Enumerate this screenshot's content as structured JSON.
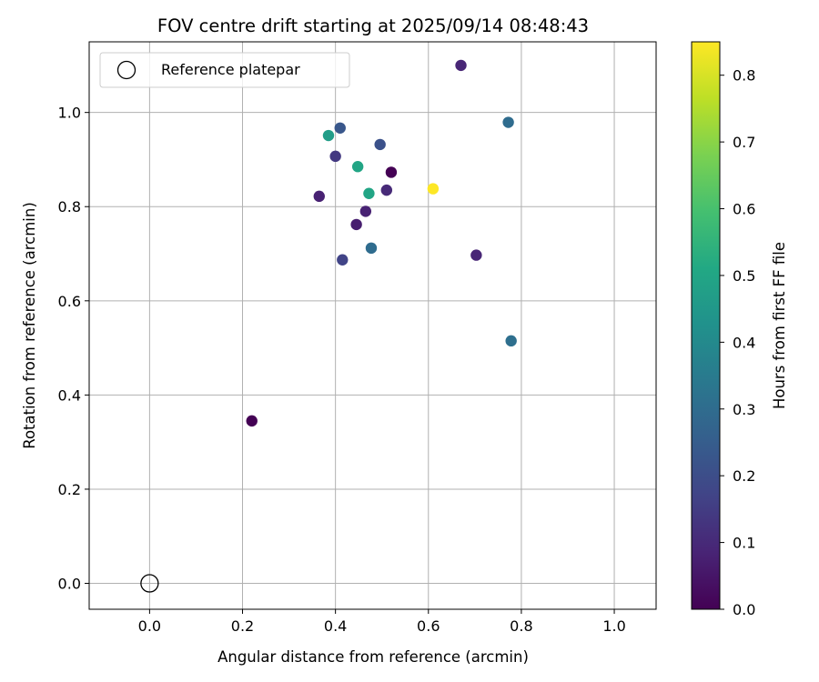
{
  "chart_data": {
    "type": "scatter",
    "title": "FOV centre drift starting at 2025/09/14 08:48:43",
    "xlabel": "Angular distance from reference (arcmin)",
    "ylabel": "Rotation from reference (arcmin)",
    "xlim": [
      -0.13,
      1.09
    ],
    "ylim": [
      -0.055,
      1.15
    ],
    "xticks": [
      0.0,
      0.2,
      0.4,
      0.6,
      0.8,
      1.0
    ],
    "yticks": [
      0.0,
      0.2,
      0.4,
      0.6,
      0.8,
      1.0
    ],
    "xtick_labels": [
      "0.0",
      "0.2",
      "0.4",
      "0.6",
      "0.8",
      "1.0"
    ],
    "ytick_labels": [
      "0.0",
      "0.2",
      "0.4",
      "0.6",
      "0.8",
      "1.0"
    ],
    "grid": true,
    "legend": {
      "placement": "top-left",
      "entries": [
        {
          "label": "Reference platepar",
          "marker": "open-circle",
          "color": "#000000"
        }
      ]
    },
    "reference_point": {
      "x": 0.0,
      "y": 0.0
    },
    "colorbar": {
      "label": "Hours from first FF file",
      "colormap": "viridis",
      "range": [
        0.0,
        0.85
      ],
      "ticks": [
        0.0,
        0.1,
        0.2,
        0.3,
        0.4,
        0.5,
        0.6,
        0.7,
        0.8
      ],
      "tick_labels": [
        "0.0",
        "0.1",
        "0.2",
        "0.3",
        "0.4",
        "0.5",
        "0.6",
        "0.7",
        "0.8"
      ]
    },
    "series": [
      {
        "points": [
          {
            "x": 0.22,
            "y": 0.345,
            "hours": 0.0
          },
          {
            "x": 0.52,
            "y": 0.873,
            "hours": 0.0
          },
          {
            "x": 0.67,
            "y": 1.1,
            "hours": 0.09
          },
          {
            "x": 0.365,
            "y": 0.822,
            "hours": 0.08
          },
          {
            "x": 0.445,
            "y": 0.762,
            "hours": 0.07
          },
          {
            "x": 0.465,
            "y": 0.79,
            "hours": 0.08
          },
          {
            "x": 0.51,
            "y": 0.835,
            "hours": 0.1
          },
          {
            "x": 0.703,
            "y": 0.697,
            "hours": 0.09
          },
          {
            "x": 0.4,
            "y": 0.907,
            "hours": 0.14
          },
          {
            "x": 0.415,
            "y": 0.687,
            "hours": 0.17
          },
          {
            "x": 0.41,
            "y": 0.967,
            "hours": 0.23
          },
          {
            "x": 0.496,
            "y": 0.932,
            "hours": 0.21
          },
          {
            "x": 0.477,
            "y": 0.712,
            "hours": 0.3
          },
          {
            "x": 0.772,
            "y": 0.979,
            "hours": 0.3
          },
          {
            "x": 0.778,
            "y": 0.515,
            "hours": 0.31
          },
          {
            "x": 0.385,
            "y": 0.951,
            "hours": 0.47
          },
          {
            "x": 0.448,
            "y": 0.885,
            "hours": 0.5
          },
          {
            "x": 0.472,
            "y": 0.828,
            "hours": 0.5
          },
          {
            "x": 0.61,
            "y": 0.838,
            "hours": 0.85
          }
        ]
      }
    ]
  }
}
